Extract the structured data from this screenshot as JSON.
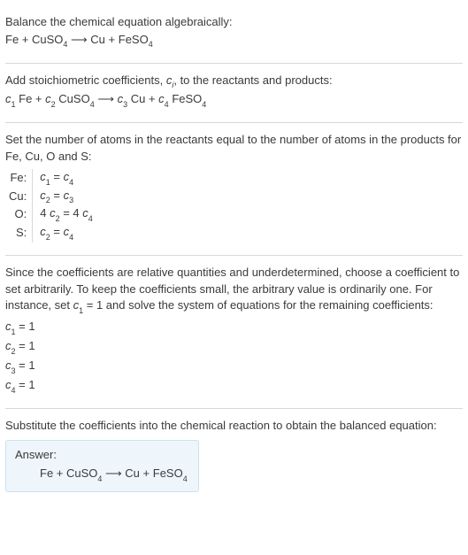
{
  "section1": {
    "line1": "Balance the chemical equation algebraically:",
    "eq": {
      "Fe": "Fe",
      "plus1": " + ",
      "CuSO": "CuSO",
      "s4a": "4",
      "arrow": "  ⟶  ",
      "Cu": "Cu",
      "plus2": " + ",
      "FeSO": "FeSO",
      "s4b": "4"
    }
  },
  "section2": {
    "line1a": "Add stoichiometric coefficients, ",
    "ci_c": "c",
    "ci_i": "i",
    "line1b": ", to the reactants and products:",
    "eq": {
      "c1": "c",
      "s1": "1",
      "sp1": " ",
      "Fe": "Fe",
      "plus1": " + ",
      "c2": "c",
      "s2": "2",
      "sp2": " ",
      "CuSO": "CuSO",
      "s4a": "4",
      "arrow": "  ⟶  ",
      "c3": "c",
      "s3": "3",
      "sp3": " ",
      "Cu": "Cu",
      "plus2": " + ",
      "c4": "c",
      "s4": "4",
      "sp4": " ",
      "FeSO": "FeSO",
      "s4b": "4"
    }
  },
  "section3": {
    "intro1": "Set the number of atoms in the reactants equal to the number of atoms in the products for Fe, Cu, O and S:",
    "rows": {
      "r1": {
        "label": "Fe:",
        "lhs_c": "c",
        "lhs_s": "1",
        "eq": " = ",
        "rhs_c": "c",
        "rhs_s": "4"
      },
      "r2": {
        "label": "Cu:",
        "lhs_c": "c",
        "lhs_s": "2",
        "eq": " = ",
        "rhs_c": "c",
        "rhs_s": "3"
      },
      "r3": {
        "label": "O:",
        "lhs_pre": "4 ",
        "lhs_c": "c",
        "lhs_s": "2",
        "eq": " = ",
        "rhs_pre": "4 ",
        "rhs_c": "c",
        "rhs_s": "4"
      },
      "r4": {
        "label": "S:",
        "lhs_c": "c",
        "lhs_s": "2",
        "eq": " = ",
        "rhs_c": "c",
        "rhs_s": "4"
      }
    }
  },
  "section4": {
    "para1a": "Since the coefficients are relative quantities and underdetermined, choose a coefficient to set arbitrarily. To keep the coefficients small, the arbitrary value is ordinarily one. For instance, set ",
    "c": "c",
    "s1": "1",
    "para1b": " = 1 and solve the system of equations for the remaining coefficients:",
    "coeffs": {
      "l1": {
        "c": "c",
        "s": "1",
        "rest": " = 1"
      },
      "l2": {
        "c": "c",
        "s": "2",
        "rest": " = 1"
      },
      "l3": {
        "c": "c",
        "s": "3",
        "rest": " = 1"
      },
      "l4": {
        "c": "c",
        "s": "4",
        "rest": " = 1"
      }
    }
  },
  "section5": {
    "para": "Substitute the coefficients into the chemical reaction to obtain the balanced equation:",
    "answer_label": "Answer:",
    "eq": {
      "Fe": "Fe",
      "plus1": " + ",
      "CuSO": "CuSO",
      "s4a": "4",
      "arrow": "  ⟶  ",
      "Cu": "Cu",
      "plus2": " + ",
      "FeSO": "FeSO",
      "s4b": "4"
    }
  }
}
